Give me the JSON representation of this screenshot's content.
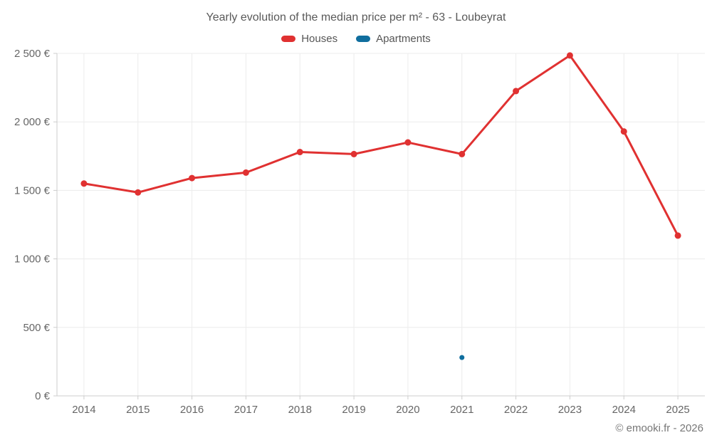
{
  "title": "Yearly evolution of the median price per m² - 63 - Loubeyrat",
  "legend": [
    {
      "label": "Houses",
      "color": "#e03131"
    },
    {
      "label": "Apartments",
      "color": "#106e9e"
    }
  ],
  "footer": "© emooki.fr - 2026",
  "colors": {
    "grid": "#ececec",
    "axis": "#cccccc",
    "tick": "#cccccc",
    "axis_label": "#666666",
    "title_text": "#595959",
    "houses": "#e03131",
    "apartments": "#106e9e"
  },
  "chart_data": {
    "type": "line",
    "title": "Yearly evolution of the median price per m² - 63 - Loubeyrat",
    "categories": [
      "2014",
      "2015",
      "2016",
      "2017",
      "2018",
      "2019",
      "2020",
      "2021",
      "2022",
      "2023",
      "2024",
      "2025"
    ],
    "series": [
      {
        "name": "Houses",
        "color": "#e03131",
        "values": [
          1550,
          1485,
          1590,
          1630,
          1780,
          1765,
          1850,
          1765,
          2225,
          2485,
          1930,
          1170
        ]
      },
      {
        "name": "Apartments",
        "color": "#106e9e",
        "values": [
          null,
          null,
          null,
          null,
          null,
          null,
          null,
          280,
          null,
          null,
          null,
          null
        ]
      }
    ],
    "xlabel": "",
    "ylabel": "",
    "ylim": [
      0,
      2500
    ],
    "ytick_step": 500,
    "ytick_suffix": " €",
    "grid": true,
    "legend_position": "top"
  }
}
